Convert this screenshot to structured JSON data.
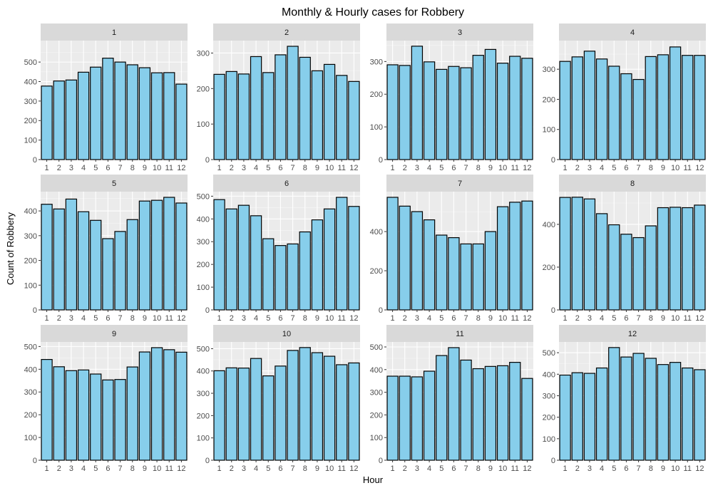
{
  "chart_data": {
    "type": "bar",
    "title": "Monthly & Hourly cases for Robbery",
    "xlabel": "Hour",
    "ylabel": "Count of Robbery",
    "grid": true,
    "facet_layout": "3 rows x 4 columns, free y scales",
    "bar_fill": "#87CEEB",
    "bar_stroke": "#000000",
    "panel_background": "#EBEBEB",
    "strip_background": "#D9D9D9",
    "categories": [
      "1",
      "2",
      "3",
      "4",
      "5",
      "6",
      "7",
      "8",
      "9",
      "10",
      "11",
      "12"
    ],
    "panels": [
      {
        "label": "1",
        "values": [
          377,
          403,
          408,
          448,
          474,
          520,
          500,
          486,
          471,
          445,
          446,
          387
        ],
        "yticks": [
          0,
          100,
          200,
          300,
          400,
          500
        ],
        "ylim": [
          0,
          610
        ]
      },
      {
        "label": "2",
        "values": [
          240,
          248,
          241,
          290,
          245,
          295,
          319,
          288,
          250,
          268,
          237,
          220
        ],
        "yticks": [
          0,
          100,
          200,
          300
        ],
        "ylim": [
          0,
          335
        ]
      },
      {
        "label": "3",
        "values": [
          290,
          288,
          347,
          299,
          276,
          285,
          281,
          319,
          337,
          295,
          316,
          310
        ],
        "yticks": [
          0,
          100,
          200,
          300
        ],
        "ylim": [
          0,
          364
        ]
      },
      {
        "label": "4",
        "values": [
          326,
          341,
          360,
          334,
          310,
          285,
          266,
          342,
          348,
          374,
          346,
          346
        ],
        "yticks": [
          0,
          100,
          200,
          300
        ],
        "ylim": [
          0,
          395
        ]
      },
      {
        "label": "5",
        "values": [
          427,
          408,
          448,
          397,
          362,
          288,
          317,
          365,
          440,
          443,
          455,
          432
        ],
        "yticks": [
          0,
          100,
          200,
          300,
          400
        ],
        "ylim": [
          0,
          478
        ]
      },
      {
        "label": "6",
        "values": [
          485,
          444,
          460,
          414,
          313,
          283,
          290,
          343,
          396,
          444,
          495,
          455
        ],
        "yticks": [
          0,
          100,
          200,
          300,
          400,
          500
        ],
        "ylim": [
          0,
          520
        ]
      },
      {
        "label": "7",
        "values": [
          575,
          530,
          502,
          460,
          382,
          369,
          337,
          337,
          400,
          527,
          550,
          556
        ],
        "yticks": [
          0,
          200,
          400
        ],
        "ylim": [
          0,
          604
        ]
      },
      {
        "label": "8",
        "values": [
          526,
          527,
          519,
          450,
          398,
          354,
          338,
          393,
          478,
          480,
          478,
          490
        ],
        "yticks": [
          0,
          200,
          400
        ],
        "ylim": [
          0,
          553
        ]
      },
      {
        "label": "9",
        "values": [
          443,
          411,
          394,
          397,
          379,
          353,
          355,
          410,
          476,
          495,
          486,
          475
        ],
        "yticks": [
          0,
          100,
          200,
          300,
          400,
          500
        ],
        "ylim": [
          0,
          520
        ]
      },
      {
        "label": "10",
        "values": [
          401,
          414,
          413,
          456,
          378,
          422,
          492,
          505,
          482,
          466,
          428,
          436
        ],
        "yticks": [
          0,
          100,
          200,
          300,
          400,
          500
        ],
        "ylim": [
          0,
          530
        ]
      },
      {
        "label": "11",
        "values": [
          371,
          371,
          368,
          393,
          462,
          497,
          442,
          404,
          414,
          417,
          432,
          361
        ],
        "yticks": [
          0,
          100,
          200,
          300,
          400,
          500
        ],
        "ylim": [
          0,
          522
        ]
      },
      {
        "label": "12",
        "values": [
          396,
          407,
          404,
          429,
          524,
          480,
          497,
          474,
          445,
          455,
          429,
          421
        ],
        "yticks": [
          0,
          100,
          200,
          300,
          400,
          500
        ],
        "ylim": [
          0,
          550
        ]
      }
    ]
  }
}
